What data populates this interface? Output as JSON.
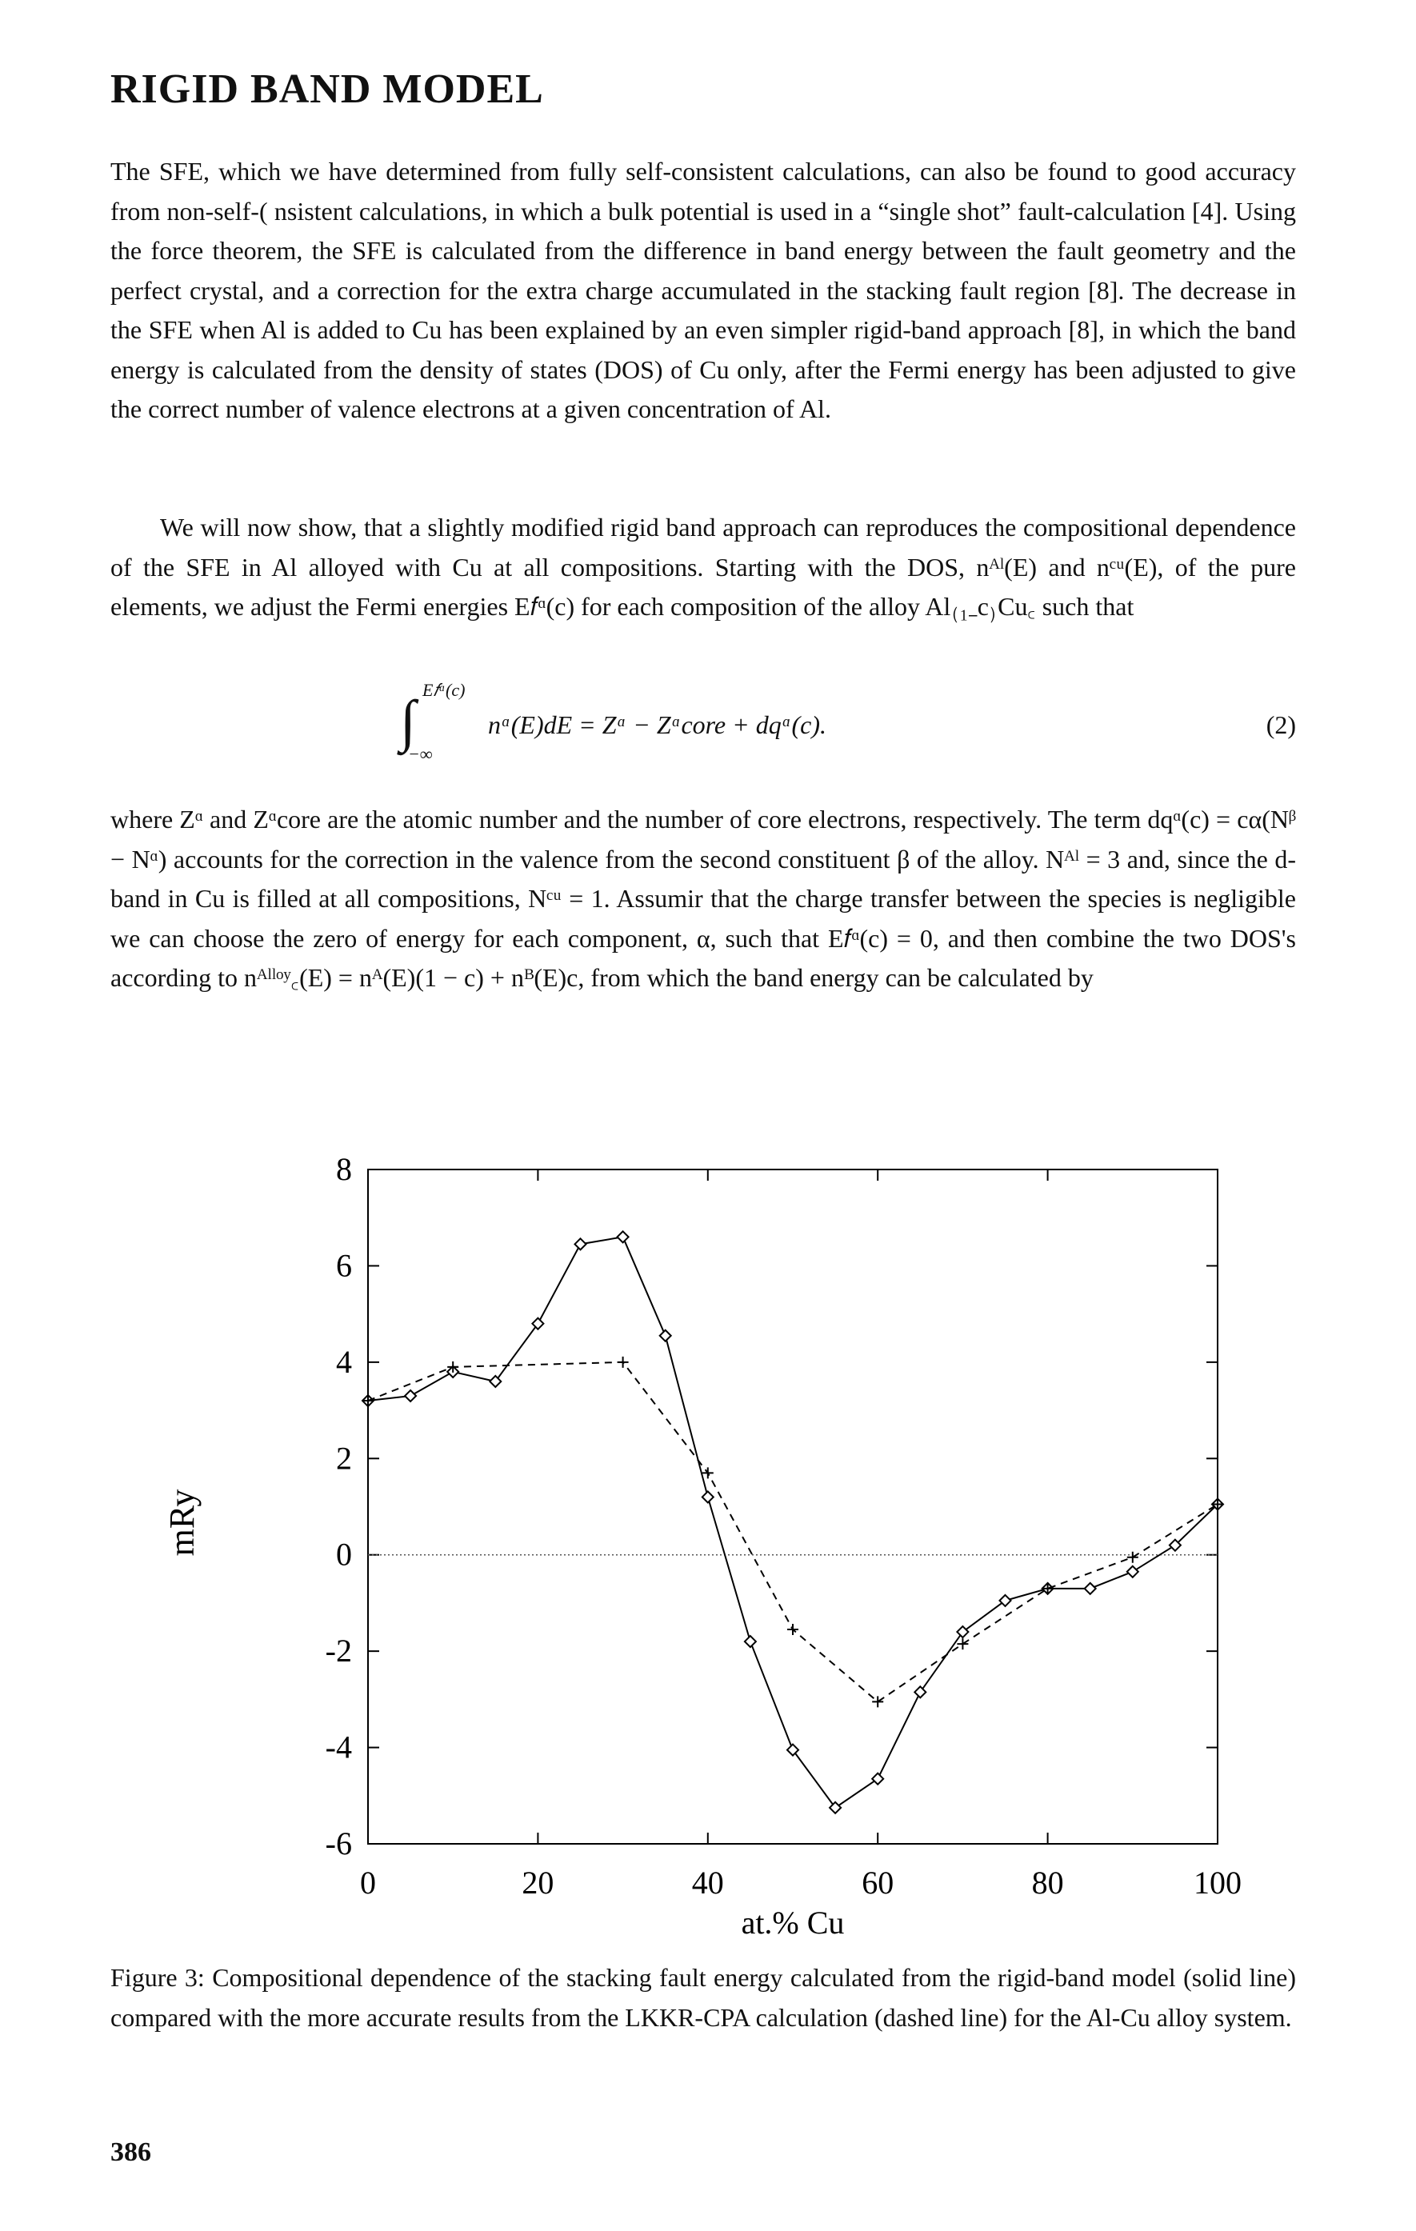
{
  "header": {
    "title": "RIGID BAND MODEL"
  },
  "body": {
    "paragraphs": [
      "The SFE, which we have determined from fully self-consistent calculations, can also be found to good accuracy from non-self-( nsistent calculations, in which a bulk potential is used in a “single shot” fault-calculation [4]. Using the force theorem, the SFE is calculated from the difference in band energy between the fault geometry and the perfect crystal, and a correction for the extra charge accumulated in the stacking fault region [8]. The decrease in the SFE when Al is added to Cu has been explained by an even simpler rigid-band approach [8], in which the band energy is calculated from the density of states (DOS) of Cu only, after the Fermi energy has been adjusted to give the correct number of valence electrons at a given concentration of Al.",
      "We will now show, that a slightly modified rigid band approach can reproduces the compositional dependence of the SFE in Al alloyed with Cu at all compositions. Starting with the DOS, nᴬˡ(E) and nᶜᵘ(E), of the pure elements, we adjust the Fermi energies E𝑓ᵅ(c) for each composition of the alloy Al₍₁₋c₎Cu꜀ such that"
    ],
    "equation": {
      "integral": "∫",
      "upper": "E𝑓ᵅ(c)",
      "lower": "−∞",
      "body": "nᵅ(E)dE = Zᵅ − Zᵅcore + dqᵅ(c).",
      "number": "(2)"
    },
    "after": "where Zᵅ and Zᵅcore are the atomic number and the number of core electrons, respectively. The term dqᵅ(c) = cα(Nᵝ − Nᵅ) accounts for the correction in the valence from the second constituent β of the alloy. Nᴬˡ = 3 and, since the d-band in Cu is filled at all compositions, Nᶜᵘ = 1. Assumir that the charge transfer between the species is negligible we can choose the zero of energy for each component, α, such that E𝑓ᵅ(c) = 0, and then combine the two DOS's according to nᴬˡˡᵒʸ꜀(E) = nᴬ(E)(1 − c) + nᴮ(E)c, from which the band energy can be calculated by"
  },
  "chart_data": {
    "type": "line",
    "x_label": "at.% Cu",
    "y_label": "mRy",
    "xlim": [
      0,
      100
    ],
    "xticks": [
      0,
      20,
      40,
      60,
      80,
      100
    ],
    "ylim": [
      -6,
      8
    ],
    "yticks": [
      -6,
      -4,
      -2,
      0,
      2,
      4,
      6,
      8
    ],
    "zero_line": true,
    "series": [
      {
        "color": "#000000",
        "dash": "solid",
        "marker": "diamond",
        "x": [
          0,
          5,
          10,
          15,
          20,
          25,
          30,
          35,
          40,
          45,
          50,
          55,
          60,
          65,
          70,
          75,
          80,
          85,
          90,
          95,
          100
        ],
        "values": [
          3.2,
          3.3,
          3.8,
          3.6,
          4.8,
          6.45,
          6.6,
          4.55,
          1.2,
          -1.8,
          -4.05,
          -5.25,
          -4.65,
          -2.85,
          -1.6,
          -0.95,
          -0.7,
          -0.7,
          -0.35,
          0.2,
          1.05
        ]
      },
      {
        "color": "#000000",
        "dash": "dashed",
        "marker": "plus",
        "x": [
          0,
          10,
          30,
          40,
          50,
          60,
          70,
          80,
          90,
          100
        ],
        "values": [
          3.2,
          3.9,
          4.0,
          1.7,
          -1.55,
          -3.05,
          -1.85,
          -0.7,
          -0.05,
          1.05
        ]
      }
    ]
  },
  "caption": "Figure 3: Compositional dependence of the stacking fault energy calculated from the rigid-band model (solid line) compared with the more accurate results from the LKKR-CPA calculation (dashed line) for the Al-Cu alloy system.",
  "footer": {
    "page_number": "386"
  }
}
